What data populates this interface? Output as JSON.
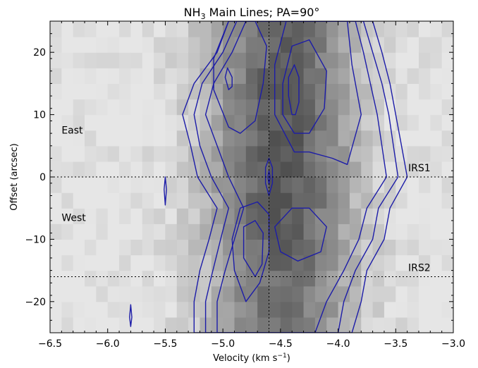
{
  "chart_data": {
    "type": "heatmap",
    "title_main": "NH",
    "title_sub": "3",
    "title_rest": " Main Lines; PA=90°",
    "xlabel_main": "Velocity (km s",
    "xlabel_sup": "−1",
    "xlabel_end": ")",
    "ylabel": "Offset (arcsec)",
    "xlim": [
      -6.5,
      -3.0
    ],
    "ylim": [
      -25,
      25
    ],
    "xticks": [
      -6.5,
      -6.0,
      -5.5,
      -5.0,
      -4.5,
      -4.0,
      -3.5,
      -3.0
    ],
    "xtick_labels": [
      "−6.5",
      "−6.0",
      "−5.5",
      "−5.0",
      "−4.5",
      "−4.0",
      "−3.5",
      "−3.0"
    ],
    "yticks": [
      20,
      10,
      0,
      -10,
      -20
    ],
    "ytick_labels": [
      "20",
      "10",
      "0",
      "−10",
      "−20"
    ],
    "vline_velocity": -4.6,
    "hlines": [
      {
        "offset": 0,
        "label": "IRS1"
      },
      {
        "offset": -16,
        "label": "IRS2"
      }
    ],
    "annotations": [
      {
        "text": "East",
        "x": -6.4,
        "y": 7.5
      },
      {
        "text": "West",
        "x": -6.4,
        "y": -6.5
      }
    ],
    "contour_color": "#1c1ca8",
    "contours": [
      {
        "name": "outer",
        "points": [
          [
            -5.25,
            -25
          ],
          [
            -5.25,
            -20
          ],
          [
            -5.2,
            -15
          ],
          [
            -5.12,
            -10
          ],
          [
            -5.05,
            -5
          ],
          [
            -5.22,
            0
          ],
          [
            -5.28,
            5
          ],
          [
            -5.35,
            10
          ],
          [
            -5.25,
            15
          ],
          [
            -5.05,
            20
          ],
          [
            -4.95,
            25
          ],
          [
            -3.7,
            25
          ],
          [
            -3.62,
            20
          ],
          [
            -3.55,
            15
          ],
          [
            -3.5,
            10
          ],
          [
            -3.45,
            5
          ],
          [
            -3.4,
            0
          ],
          [
            -3.55,
            -5
          ],
          [
            -3.6,
            -10
          ],
          [
            -3.75,
            -15
          ],
          [
            -3.8,
            -20
          ],
          [
            -3.88,
            -25
          ]
        ]
      },
      {
        "name": "level2",
        "points": [
          [
            -5.15,
            -25
          ],
          [
            -5.15,
            -20
          ],
          [
            -5.1,
            -16
          ],
          [
            -5.02,
            -10
          ],
          [
            -4.95,
            -5
          ],
          [
            -5.1,
            0
          ],
          [
            -5.2,
            5
          ],
          [
            -5.25,
            10
          ],
          [
            -5.18,
            15
          ],
          [
            -5.0,
            20
          ],
          [
            -4.88,
            25
          ],
          [
            -3.78,
            25
          ],
          [
            -3.7,
            20
          ],
          [
            -3.62,
            15
          ],
          [
            -3.56,
            10
          ],
          [
            -3.52,
            5
          ],
          [
            -3.48,
            0
          ],
          [
            -3.65,
            -5
          ],
          [
            -3.7,
            -10
          ],
          [
            -3.85,
            -15
          ],
          [
            -3.95,
            -20
          ],
          [
            -4.0,
            -25
          ]
        ]
      },
      {
        "name": "level3",
        "points": [
          [
            -5.05,
            -25
          ],
          [
            -5.05,
            -20
          ],
          [
            -4.98,
            -15
          ],
          [
            -4.9,
            -10
          ],
          [
            -4.82,
            -5
          ],
          [
            -4.95,
            0
          ],
          [
            -5.05,
            5
          ],
          [
            -5.15,
            10
          ],
          [
            -5.08,
            15
          ],
          [
            -4.92,
            20
          ],
          [
            -4.8,
            25
          ],
          [
            -3.85,
            25
          ],
          [
            -3.78,
            20
          ],
          [
            -3.72,
            15
          ],
          [
            -3.66,
            10
          ],
          [
            -3.62,
            5
          ],
          [
            -3.58,
            0
          ],
          [
            -3.75,
            -5
          ],
          [
            -3.82,
            -10
          ],
          [
            -3.95,
            -15
          ],
          [
            -4.1,
            -20
          ],
          [
            -4.2,
            -25
          ]
        ]
      },
      {
        "name": "east-left-inner",
        "points": [
          [
            -4.95,
            8
          ],
          [
            -5.08,
            14
          ],
          [
            -5.08,
            19
          ],
          [
            -4.95,
            25
          ],
          [
            -4.72,
            25
          ],
          [
            -4.62,
            21
          ],
          [
            -4.65,
            15
          ],
          [
            -4.72,
            9
          ],
          [
            -4.85,
            7
          ]
        ]
      },
      {
        "name": "east-right-inner",
        "points": [
          [
            -4.38,
            4
          ],
          [
            -4.55,
            10
          ],
          [
            -4.55,
            18
          ],
          [
            -4.45,
            25
          ],
          [
            -3.92,
            25
          ],
          [
            -3.88,
            18
          ],
          [
            -3.8,
            10
          ],
          [
            -3.92,
            2
          ],
          [
            -4.05,
            3
          ],
          [
            -4.25,
            4
          ]
        ]
      },
      {
        "name": "east-right-core",
        "points": [
          [
            -4.38,
            7
          ],
          [
            -4.48,
            10
          ],
          [
            -4.48,
            15
          ],
          [
            -4.4,
            21
          ],
          [
            -4.25,
            22
          ],
          [
            -4.1,
            17
          ],
          [
            -4.12,
            11
          ],
          [
            -4.25,
            7
          ]
        ]
      },
      {
        "name": "east-blob",
        "points": [
          [
            -4.95,
            14
          ],
          [
            -4.98,
            16
          ],
          [
            -4.96,
            17.5
          ],
          [
            -4.92,
            16
          ],
          [
            -4.92,
            14.5
          ]
        ]
      },
      {
        "name": "dark-spot",
        "points": [
          [
            -4.4,
            10
          ],
          [
            -4.43,
            13
          ],
          [
            -4.43,
            16
          ],
          [
            -4.38,
            18
          ],
          [
            -4.34,
            16
          ],
          [
            -4.34,
            12
          ],
          [
            -4.37,
            10
          ]
        ]
      },
      {
        "name": "west-left-inner",
        "points": [
          [
            -4.8,
            -20
          ],
          [
            -4.9,
            -15
          ],
          [
            -4.92,
            -10
          ],
          [
            -4.85,
            -5
          ],
          [
            -4.7,
            -4
          ],
          [
            -4.6,
            -6
          ],
          [
            -4.6,
            -12
          ],
          [
            -4.68,
            -17
          ]
        ]
      },
      {
        "name": "west-left-core",
        "points": [
          [
            -4.72,
            -16
          ],
          [
            -4.82,
            -13
          ],
          [
            -4.82,
            -8
          ],
          [
            -4.72,
            -7
          ],
          [
            -4.65,
            -9
          ],
          [
            -4.66,
            -14
          ]
        ]
      },
      {
        "name": "west-right-inner",
        "points": [
          [
            -4.4,
            -5
          ],
          [
            -4.55,
            -8
          ],
          [
            -4.5,
            -12
          ],
          [
            -4.35,
            -13.5
          ],
          [
            -4.15,
            -12
          ],
          [
            -4.1,
            -8
          ],
          [
            -4.25,
            -5
          ]
        ]
      },
      {
        "name": "center-ring",
        "points": [
          [
            -4.6,
            -3
          ],
          [
            -4.63,
            -1
          ],
          [
            -4.63,
            1.5
          ],
          [
            -4.6,
            3
          ],
          [
            -4.57,
            1.5
          ],
          [
            -4.57,
            -1
          ]
        ]
      },
      {
        "name": "center-core",
        "points": [
          [
            -4.6,
            -1.2
          ],
          [
            -4.61,
            0
          ],
          [
            -4.6,
            1
          ],
          [
            -4.59,
            0
          ]
        ]
      },
      {
        "name": "spike-5.5",
        "points": [
          [
            -5.5,
            -4.5
          ],
          [
            -5.51,
            -2
          ],
          [
            -5.5,
            0
          ],
          [
            -5.49,
            -2
          ]
        ]
      },
      {
        "name": "spike-5.8",
        "points": [
          [
            -5.8,
            -24
          ],
          [
            -5.81,
            -22.5
          ],
          [
            -5.8,
            -20.5
          ],
          [
            -5.79,
            -22.5
          ]
        ]
      }
    ]
  }
}
